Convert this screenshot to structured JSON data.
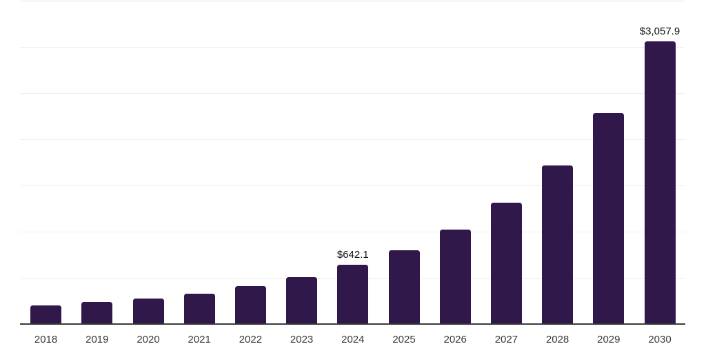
{
  "chart_data": {
    "type": "bar",
    "title": "",
    "xlabel": "",
    "ylabel": "",
    "categories": [
      "2018",
      "2019",
      "2020",
      "2021",
      "2022",
      "2023",
      "2024",
      "2025",
      "2026",
      "2027",
      "2028",
      "2029",
      "2030"
    ],
    "values": [
      198,
      242,
      275,
      327,
      407,
      509,
      642.1,
      800,
      1019,
      1310,
      1720,
      2280,
      3057.9
    ],
    "data_labels": {
      "2024": "$642.1",
      "2030": "$3,057.9"
    },
    "ylim": [
      0,
      3500
    ],
    "gridline_step": 500,
    "grid": "horizontal-only, no y-axis tick labels",
    "legend_position": "none",
    "colors": {
      "bar": "#30184a",
      "axis_line": "#3a3a3a",
      "gridline": "#ededed",
      "gridline_top": "#e3e3e3",
      "tick_label": "#383838",
      "value_label": "#121212",
      "background": "#ffffff"
    }
  }
}
